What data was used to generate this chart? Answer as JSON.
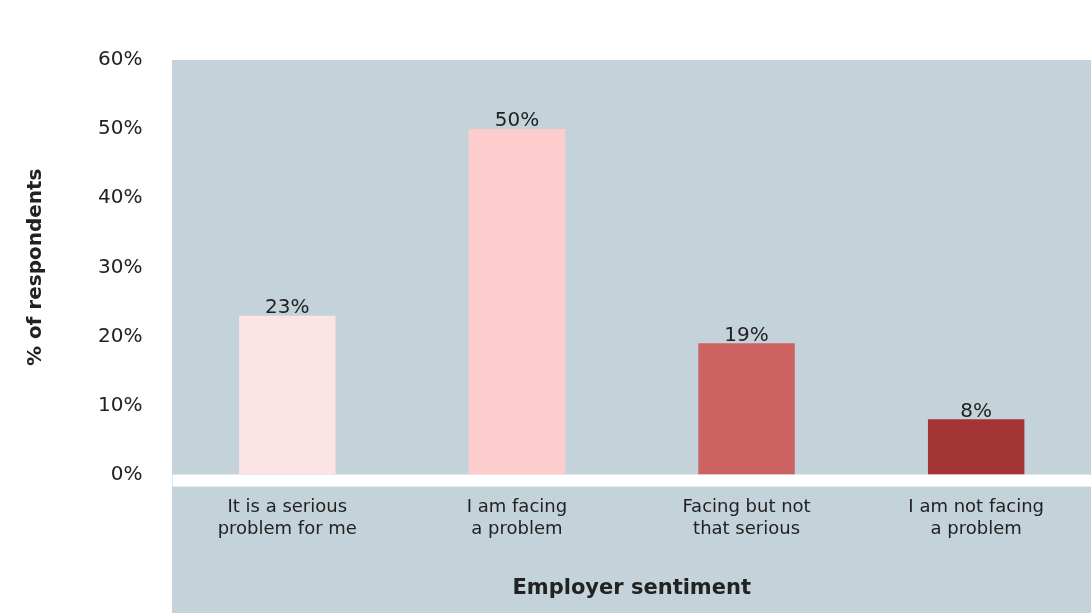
{
  "chart_data": {
    "type": "bar",
    "xlabel": "Employer sentiment",
    "ylabel": "% of respondents",
    "categories": [
      "It is a serious problem for me",
      "I am facing a problem",
      "Facing but not that serious",
      "I am not facing a problem"
    ],
    "values": [
      23,
      50,
      19,
      8
    ],
    "colors": [
      "#fce4e4",
      "#fecccc",
      "#cc6262",
      "#a33535"
    ],
    "value_labels": [
      "23%",
      "50%",
      "19%",
      "8%"
    ],
    "ylim": [
      0,
      60
    ],
    "yticks": [
      {
        "value": 0,
        "label": "0%"
      },
      {
        "value": 10,
        "label": "10%"
      },
      {
        "value": 20,
        "label": "20%"
      },
      {
        "value": 30,
        "label": "30%"
      },
      {
        "value": 40,
        "label": "40%"
      },
      {
        "value": 50,
        "label": "50%"
      },
      {
        "value": 60,
        "label": "60%"
      }
    ],
    "grid": false,
    "legend": false
  }
}
